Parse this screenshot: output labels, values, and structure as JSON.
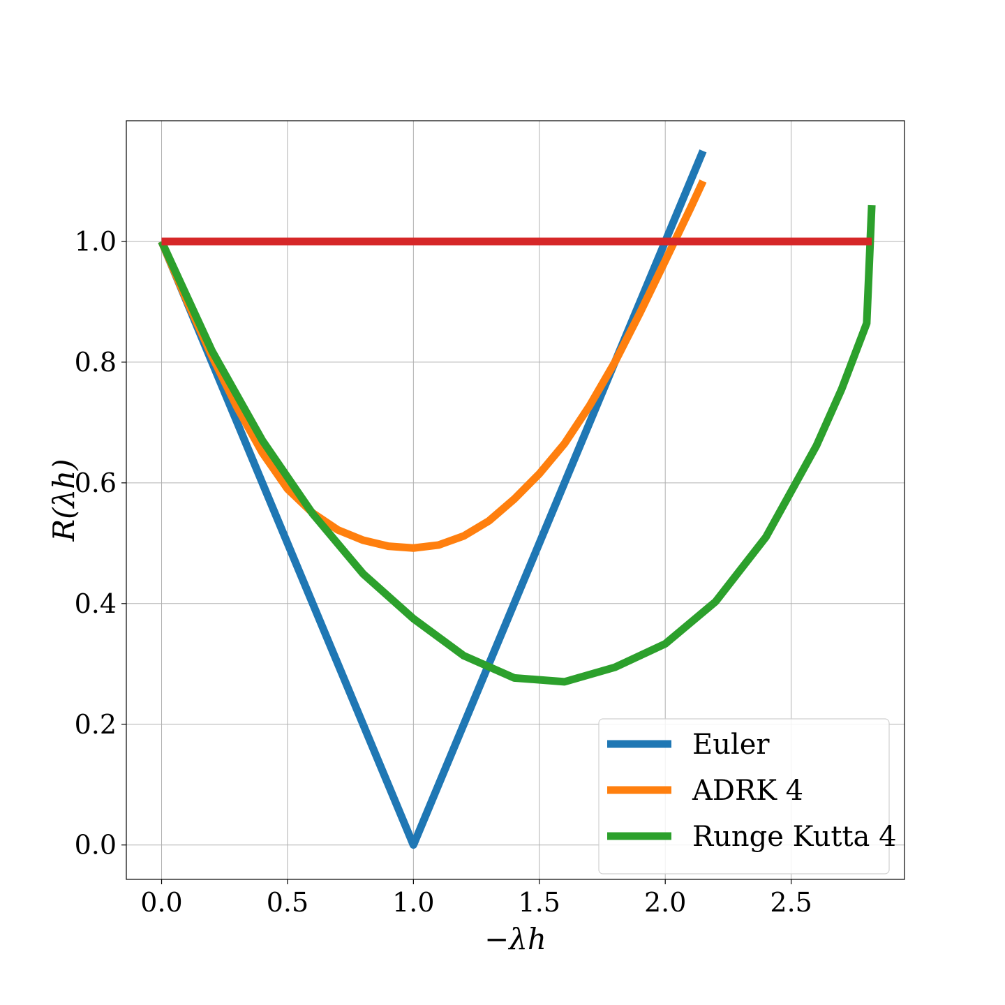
{
  "chart_data": {
    "type": "line",
    "title": "",
    "xlabel": "−λh",
    "ylabel": "R(λh)",
    "xlim": [
      -0.14,
      2.95
    ],
    "ylim": [
      -0.057,
      1.2
    ],
    "xticks": [
      0.0,
      0.5,
      1.0,
      1.5,
      2.0,
      2.5
    ],
    "xtick_labels": [
      "0.0",
      "0.5",
      "1.0",
      "1.5",
      "2.0",
      "2.5"
    ],
    "yticks": [
      0.0,
      0.2,
      0.4,
      0.6,
      0.8,
      1.0
    ],
    "ytick_labels": [
      "0.0",
      "0.2",
      "0.4",
      "0.6",
      "0.8",
      "1.0"
    ],
    "grid": true,
    "legend_position": "lower-right",
    "series": [
      {
        "name": "Euler",
        "color": "#1f77b4",
        "in_legend": true,
        "x": [
          0.0,
          1.0,
          2.15
        ],
        "y": [
          1.0,
          0.0,
          1.15
        ]
      },
      {
        "name": "ADRK 4",
        "color": "#ff7f0e",
        "in_legend": true,
        "x": [
          0.0,
          0.1,
          0.2,
          0.3,
          0.4,
          0.5,
          0.6,
          0.7,
          0.8,
          0.9,
          1.0,
          1.1,
          1.2,
          1.3,
          1.4,
          1.5,
          1.6,
          1.7,
          1.8,
          1.9,
          2.0,
          2.1,
          2.15
        ],
        "y": [
          1.0,
          0.902,
          0.81,
          0.725,
          0.65,
          0.59,
          0.55,
          0.522,
          0.505,
          0.495,
          0.492,
          0.497,
          0.512,
          0.537,
          0.573,
          0.615,
          0.665,
          0.728,
          0.8,
          0.882,
          0.968,
          1.055,
          1.1
        ]
      },
      {
        "name": "Runge Kutta 4",
        "color": "#2ca02c",
        "in_legend": true,
        "x": [
          0.0,
          0.2,
          0.4,
          0.6,
          0.8,
          1.0,
          1.2,
          1.4,
          1.6,
          1.8,
          2.0,
          2.2,
          2.4,
          2.6,
          2.7,
          2.8,
          2.82
        ],
        "y": [
          1.0,
          0.8187,
          0.6704,
          0.5488,
          0.4494,
          0.375,
          0.3136,
          0.2768,
          0.2704,
          0.2944,
          0.3333,
          0.4032,
          0.5104,
          0.6613,
          0.7549,
          0.8645,
          1.06
        ]
      },
      {
        "name": "",
        "color": "#d62728",
        "in_legend": false,
        "x": [
          0.0,
          2.82
        ],
        "y": [
          1.0,
          1.0
        ]
      }
    ]
  }
}
